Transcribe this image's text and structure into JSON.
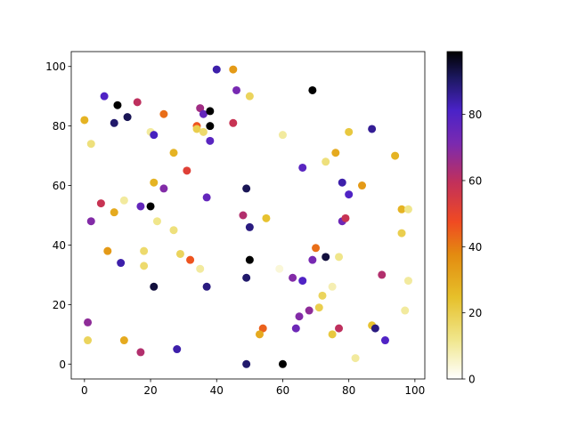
{
  "chart_data": {
    "type": "scatter",
    "title": "",
    "xlabel": "",
    "ylabel": "",
    "xlim": [
      -4,
      103
    ],
    "ylim": [
      -5,
      105
    ],
    "xticks": [
      0,
      20,
      40,
      60,
      80,
      100
    ],
    "yticks": [
      0,
      20,
      40,
      60,
      80,
      100
    ],
    "grid": false,
    "colormap": "CMRmap_r",
    "colorbar": {
      "min": 0,
      "max": 99,
      "ticks": [
        0,
        20,
        40,
        60,
        80
      ]
    },
    "points": [
      {
        "x": 0,
        "y": 82,
        "c": 28
      },
      {
        "x": 2,
        "y": 74,
        "c": 14
      },
      {
        "x": 6,
        "y": 90,
        "c": 80
      },
      {
        "x": 10,
        "y": 87,
        "c": 99
      },
      {
        "x": 9,
        "y": 81,
        "c": 90
      },
      {
        "x": 13,
        "y": 83,
        "c": 92
      },
      {
        "x": 16,
        "y": 88,
        "c": 60
      },
      {
        "x": 20,
        "y": 78,
        "c": 10
      },
      {
        "x": 21,
        "y": 77,
        "c": 82
      },
      {
        "x": 24,
        "y": 84,
        "c": 42
      },
      {
        "x": 35,
        "y": 86,
        "c": 65
      },
      {
        "x": 36,
        "y": 84,
        "c": 76
      },
      {
        "x": 38,
        "y": 85,
        "c": 99
      },
      {
        "x": 40,
        "y": 99,
        "c": 84
      },
      {
        "x": 34,
        "y": 80,
        "c": 46
      },
      {
        "x": 34,
        "y": 79,
        "c": 20
      },
      {
        "x": 36,
        "y": 78,
        "c": 16
      },
      {
        "x": 38,
        "y": 80,
        "c": 99
      },
      {
        "x": 38,
        "y": 75,
        "c": 78
      },
      {
        "x": 45,
        "y": 99,
        "c": 34
      },
      {
        "x": 46,
        "y": 92,
        "c": 72
      },
      {
        "x": 50,
        "y": 90,
        "c": 18
      },
      {
        "x": 45,
        "y": 81,
        "c": 58
      },
      {
        "x": 60,
        "y": 77,
        "c": 10
      },
      {
        "x": 69,
        "y": 92,
        "c": 99
      },
      {
        "x": 80,
        "y": 78,
        "c": 22
      },
      {
        "x": 87,
        "y": 79,
        "c": 86
      },
      {
        "x": 27,
        "y": 71,
        "c": 28
      },
      {
        "x": 31,
        "y": 65,
        "c": 52
      },
      {
        "x": 21,
        "y": 61,
        "c": 28
      },
      {
        "x": 24,
        "y": 59,
        "c": 70
      },
      {
        "x": 37,
        "y": 56,
        "c": 76
      },
      {
        "x": 12,
        "y": 55,
        "c": 10
      },
      {
        "x": 5,
        "y": 54,
        "c": 58
      },
      {
        "x": 9,
        "y": 51,
        "c": 30
      },
      {
        "x": 17,
        "y": 53,
        "c": 76
      },
      {
        "x": 20,
        "y": 53,
        "c": 99
      },
      {
        "x": 2,
        "y": 48,
        "c": 70
      },
      {
        "x": 22,
        "y": 48,
        "c": 12
      },
      {
        "x": 27,
        "y": 45,
        "c": 14
      },
      {
        "x": 49,
        "y": 59,
        "c": 92
      },
      {
        "x": 48,
        "y": 50,
        "c": 62
      },
      {
        "x": 50,
        "y": 46,
        "c": 88
      },
      {
        "x": 55,
        "y": 49,
        "c": 24
      },
      {
        "x": 66,
        "y": 66,
        "c": 78
      },
      {
        "x": 73,
        "y": 68,
        "c": 14
      },
      {
        "x": 76,
        "y": 71,
        "c": 30
      },
      {
        "x": 78,
        "y": 61,
        "c": 84
      },
      {
        "x": 80,
        "y": 57,
        "c": 80
      },
      {
        "x": 84,
        "y": 60,
        "c": 34
      },
      {
        "x": 94,
        "y": 70,
        "c": 28
      },
      {
        "x": 96,
        "y": 52,
        "c": 28
      },
      {
        "x": 98,
        "y": 52,
        "c": 12
      },
      {
        "x": 78,
        "y": 48,
        "c": 74
      },
      {
        "x": 79,
        "y": 49,
        "c": 58
      },
      {
        "x": 96,
        "y": 44,
        "c": 20
      },
      {
        "x": 7,
        "y": 38,
        "c": 34
      },
      {
        "x": 11,
        "y": 34,
        "c": 84
      },
      {
        "x": 18,
        "y": 38,
        "c": 16
      },
      {
        "x": 18,
        "y": 33,
        "c": 16
      },
      {
        "x": 29,
        "y": 37,
        "c": 18
      },
      {
        "x": 32,
        "y": 35,
        "c": 46
      },
      {
        "x": 35,
        "y": 32,
        "c": 10
      },
      {
        "x": 21,
        "y": 26,
        "c": 94
      },
      {
        "x": 37,
        "y": 26,
        "c": 88
      },
      {
        "x": 50,
        "y": 35,
        "c": 99
      },
      {
        "x": 49,
        "y": 29,
        "c": 90
      },
      {
        "x": 59,
        "y": 32,
        "c": 4
      },
      {
        "x": 70,
        "y": 39,
        "c": 42
      },
      {
        "x": 69,
        "y": 35,
        "c": 72
      },
      {
        "x": 73,
        "y": 36,
        "c": 94
      },
      {
        "x": 77,
        "y": 36,
        "c": 12
      },
      {
        "x": 63,
        "y": 29,
        "c": 70
      },
      {
        "x": 66,
        "y": 28,
        "c": 80
      },
      {
        "x": 72,
        "y": 23,
        "c": 18
      },
      {
        "x": 75,
        "y": 26,
        "c": 8
      },
      {
        "x": 71,
        "y": 19,
        "c": 20
      },
      {
        "x": 68,
        "y": 18,
        "c": 68
      },
      {
        "x": 65,
        "y": 16,
        "c": 70
      },
      {
        "x": 64,
        "y": 12,
        "c": 74
      },
      {
        "x": 75,
        "y": 10,
        "c": 22
      },
      {
        "x": 77,
        "y": 12,
        "c": 60
      },
      {
        "x": 87,
        "y": 13,
        "c": 24
      },
      {
        "x": 88,
        "y": 12,
        "c": 88
      },
      {
        "x": 90,
        "y": 30,
        "c": 62
      },
      {
        "x": 98,
        "y": 28,
        "c": 10
      },
      {
        "x": 97,
        "y": 18,
        "c": 10
      },
      {
        "x": 91,
        "y": 8,
        "c": 80
      },
      {
        "x": 82,
        "y": 2,
        "c": 10
      },
      {
        "x": 54,
        "y": 12,
        "c": 44
      },
      {
        "x": 53,
        "y": 10,
        "c": 30
      },
      {
        "x": 60,
        "y": 0,
        "c": 99
      },
      {
        "x": 49,
        "y": 0,
        "c": 90
      },
      {
        "x": 28,
        "y": 5,
        "c": 84
      },
      {
        "x": 17,
        "y": 4,
        "c": 62
      },
      {
        "x": 12,
        "y": 8,
        "c": 30
      },
      {
        "x": 1,
        "y": 8,
        "c": 18
      },
      {
        "x": 1,
        "y": 14,
        "c": 68
      }
    ]
  }
}
